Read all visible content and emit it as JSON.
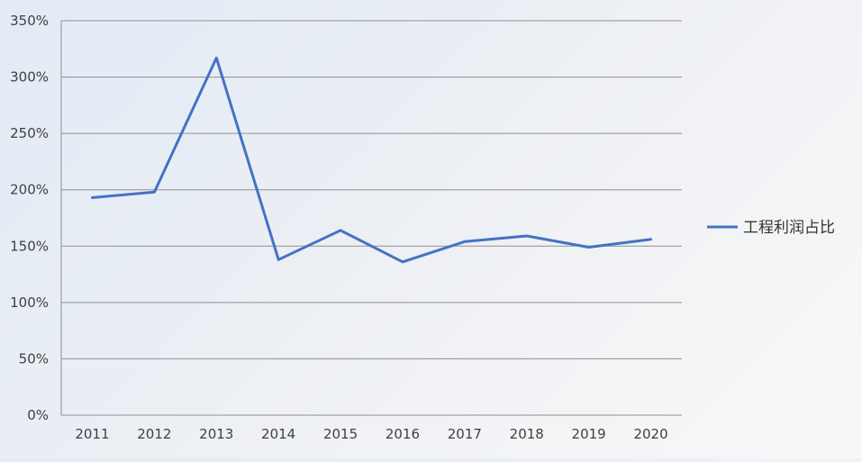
{
  "chart_data": {
    "type": "line",
    "categories": [
      "2011",
      "2012",
      "2013",
      "2014",
      "2015",
      "2016",
      "2017",
      "2018",
      "2019",
      "2020"
    ],
    "series": [
      {
        "name": "工程利润占比",
        "values": [
          193,
          198,
          317,
          138,
          164,
          136,
          154,
          159,
          149,
          156
        ]
      }
    ],
    "y_ticks": [
      "0%",
      "50%",
      "100%",
      "150%",
      "200%",
      "250%",
      "300%",
      "350%"
    ],
    "ylim": [
      0,
      350
    ],
    "y_unit": "%",
    "grid": true,
    "legend_position": "right",
    "title": "",
    "xlabel": "",
    "ylabel": ""
  },
  "colors": {
    "series": "#4472c4",
    "grid": "#909090",
    "axis": "#909090",
    "text": "#404040"
  }
}
